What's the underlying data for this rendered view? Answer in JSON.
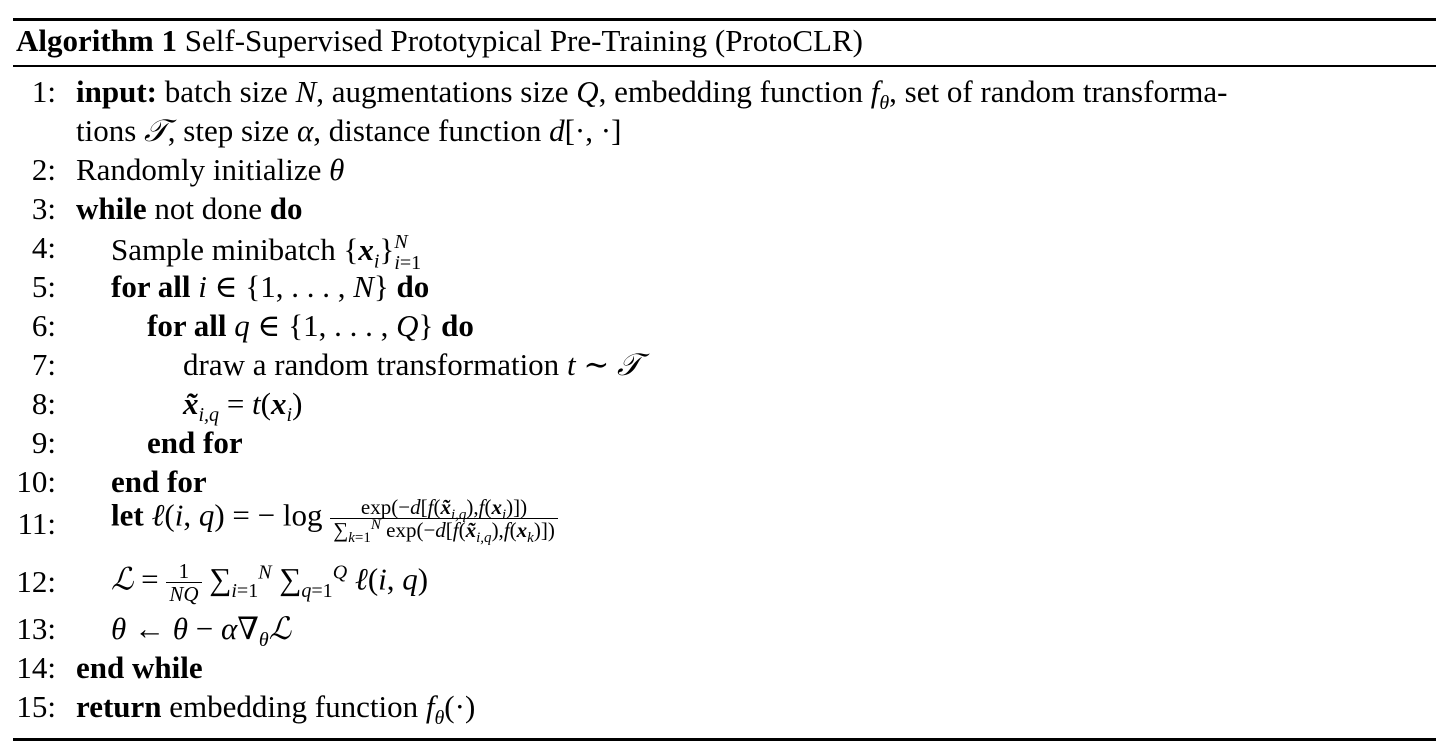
{
  "algorithm": {
    "label": "Algorithm 1",
    "title": "Self-Supervised Prototypical Pre-Training (ProtoCLR)"
  },
  "lines": [
    {
      "num": "1:"
    },
    {
      "num": ""
    },
    {
      "num": "2:"
    },
    {
      "num": "3:"
    },
    {
      "num": "4:"
    },
    {
      "num": "5:"
    },
    {
      "num": "6:"
    },
    {
      "num": "7:"
    },
    {
      "num": "8:"
    },
    {
      "num": "9:"
    },
    {
      "num": "10:"
    },
    {
      "num": "11:"
    },
    {
      "num": "12:"
    },
    {
      "num": "13:"
    },
    {
      "num": "14:"
    },
    {
      "num": "15:"
    }
  ],
  "text": {
    "l1_kw": "input:",
    "l1_a": " batch size ",
    "l1_b": ", augmentations size ",
    "l1_c": ", embedding function ",
    "l1_d": ", set of random transforma-",
    "l1b_a": "tions ",
    "l1b_b": ", step size ",
    "l1b_c": ", distance function ",
    "l2": "Randomly initialize ",
    "l3_kw1": "while",
    "l3_mid": " not done ",
    "l3_kw2": "do",
    "l4": "Sample minibatch ",
    "l5_kw1": "for all",
    "l5_kw2": "do",
    "l6_kw1": "for all",
    "l6_kw2": "do",
    "l7": "draw a random transformation ",
    "l9_kw": "end for",
    "l10_kw": "end for",
    "l11_kw": "let",
    "l14_kw": "end while",
    "l15_kw": "return",
    "l15_a": " embedding function "
  }
}
